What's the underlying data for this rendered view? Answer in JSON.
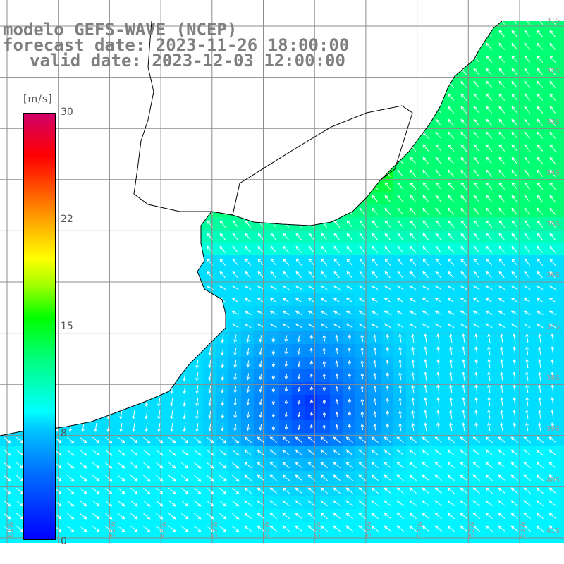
{
  "title": {
    "line1": "modelo GEFS-WAVE (NCEP)",
    "line2": "forecast date: 2023-11-26 18:00:00",
    "line3": "valid date: 2023-12-03 12:00:00"
  },
  "colorbar": {
    "unit": "[m/s]",
    "ticks": [
      "30",
      "22",
      "15",
      "8",
      "0"
    ],
    "min": 0,
    "max": 30,
    "colors": [
      "#0000ff",
      "#0072ff",
      "#00c8ff",
      "#00ffff",
      "#00ff80",
      "#00ff00",
      "#a8ff00",
      "#ffff00",
      "#ff9800",
      "#ff0000",
      "#d0006a"
    ]
  },
  "map": {
    "lat_labels": [
      "31S",
      "32S",
      "33S",
      "34S",
      "35S",
      "36S",
      "37S",
      "38S",
      "39S",
      "40S",
      "41S"
    ],
    "lon_labels": [
      "61W",
      "60W",
      "59W",
      "58W",
      "57W",
      "56W",
      "55W",
      "54W",
      "53W",
      "52W",
      "51W"
    ],
    "land_color": "#ffffff",
    "grid_color": "#8c8c8c",
    "arrow_color": "#ffffff"
  }
}
